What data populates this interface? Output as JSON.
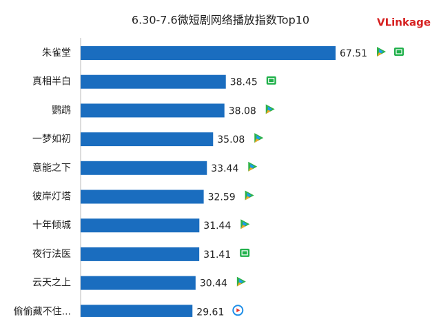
{
  "chart_data": {
    "type": "bar",
    "orientation": "horizontal",
    "title": "6.30-7.6微短剧网络播放指数Top10",
    "logo": "VLinkage",
    "categories": [
      "朱雀堂",
      "真相半白",
      "鹦鹉",
      "一梦如初",
      "意能之下",
      "彼岸灯塔",
      "十年倾城",
      "夜行法医",
      "云天之上",
      "偷偷藏不住..."
    ],
    "values": [
      67.51,
      38.45,
      38.08,
      35.08,
      33.44,
      32.59,
      31.44,
      31.41,
      30.44,
      29.61
    ],
    "color": "#1a6dbf"
  }
}
